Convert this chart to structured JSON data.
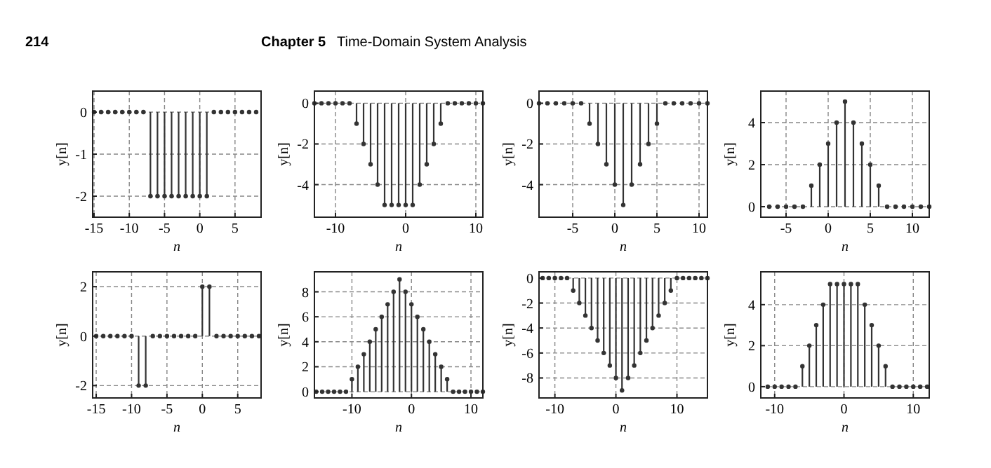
{
  "chart_data": [
    {
      "type": "lollipop",
      "annotations": [
        "214",
        "Chapter 5",
        "Time-Domain System Analysis"
      ],
      "xlabel": "n",
      "ylabel": "y[n]",
      "grid": true,
      "marker": "circle",
      "color": "#333333",
      "xlim": [
        -15.2,
        8.7
      ],
      "ylim": [
        -2.5,
        0.5
      ],
      "xticks": [
        -15,
        -10,
        -5,
        0,
        5
      ],
      "yticks": [
        0,
        -1,
        -2
      ],
      "x": [
        -15,
        -14,
        -13,
        -12,
        -11,
        -10,
        -9,
        -8,
        -7,
        -6,
        -5,
        -4,
        -3,
        -2,
        -1,
        0,
        1,
        2,
        3,
        4,
        5,
        6,
        7,
        8
      ],
      "values": [
        0,
        0,
        0,
        0,
        0,
        0,
        0,
        0,
        -2,
        -2,
        -2,
        -2,
        -2,
        -2,
        -2,
        -2,
        -2,
        0,
        0,
        0,
        0,
        0,
        0,
        0
      ]
    },
    {
      "type": "lollipop",
      "xlabel": "n",
      "ylabel": "y[n]",
      "grid": true,
      "marker": "circle",
      "color": "#333333",
      "xlim": [
        -13,
        11
      ],
      "ylim": [
        -5.6,
        0.6
      ],
      "xticks": [
        -10,
        0,
        10
      ],
      "yticks": [
        0,
        -2,
        -4
      ],
      "x": [
        -13,
        -12,
        -11,
        -10,
        -9,
        -8,
        -7,
        -6,
        -5,
        -4,
        -3,
        -2,
        -1,
        0,
        1,
        2,
        3,
        4,
        5,
        6,
        7,
        8,
        9,
        10,
        11
      ],
      "values": [
        0,
        0,
        0,
        0,
        0,
        0,
        -1,
        -2,
        -3,
        -4,
        -5,
        -5,
        -5,
        -5,
        -5,
        -4,
        -3,
        -2,
        -1,
        0,
        0,
        0,
        0,
        0,
        0
      ]
    },
    {
      "type": "lollipop",
      "xlabel": "n",
      "ylabel": "y[n]",
      "grid": true,
      "marker": "circle",
      "color": "#333333",
      "xlim": [
        -9,
        11
      ],
      "ylim": [
        -5.6,
        0.6
      ],
      "xticks": [
        -5,
        0,
        5,
        10
      ],
      "yticks": [
        0,
        -2,
        -4
      ],
      "x": [
        -9,
        -8,
        -7,
        -6,
        -5,
        -4,
        -3,
        -2,
        -1,
        0,
        1,
        2,
        3,
        4,
        5,
        6,
        7,
        8,
        9,
        10,
        11
      ],
      "values": [
        0,
        0,
        0,
        0,
        0,
        0,
        -1,
        -2,
        -3,
        -4,
        -5,
        -4,
        -3,
        -2,
        -1,
        0,
        0,
        0,
        0,
        0,
        0
      ]
    },
    {
      "type": "lollipop",
      "xlabel": "n",
      "ylabel": "y[n]",
      "grid": true,
      "marker": "circle",
      "color": "#333333",
      "xlim": [
        -8,
        12
      ],
      "ylim": [
        -0.5,
        5.5
      ],
      "xticks": [
        -5,
        0,
        5,
        10
      ],
      "yticks": [
        0,
        2,
        4
      ],
      "x": [
        -7,
        -6,
        -5,
        -4,
        -3,
        -2,
        -1,
        0,
        1,
        2,
        3,
        4,
        5,
        6,
        7,
        8,
        9,
        10,
        11,
        12
      ],
      "values": [
        0,
        0,
        0,
        0,
        0,
        1,
        2,
        3,
        4,
        5,
        4,
        3,
        2,
        1,
        0,
        0,
        0,
        0,
        0,
        0
      ]
    },
    {
      "type": "lollipop",
      "xlabel": "n",
      "ylabel": "y[n]",
      "grid": true,
      "marker": "circle",
      "color": "#333333",
      "xlim": [
        -15.5,
        8.3
      ],
      "ylim": [
        -2.5,
        2.6
      ],
      "xticks": [
        -15,
        -10,
        -5,
        0,
        5
      ],
      "yticks": [
        -2,
        0,
        2
      ],
      "x": [
        -15,
        -14,
        -13,
        -12,
        -11,
        -10,
        -9,
        -8,
        -7,
        -6,
        -5,
        -4,
        -3,
        -2,
        -1,
        0,
        1,
        2,
        3,
        4,
        5,
        6,
        7,
        8
      ],
      "values": [
        0,
        0,
        0,
        0,
        0,
        0,
        -2,
        -2,
        0,
        0,
        0,
        0,
        0,
        0,
        0,
        2,
        2,
        0,
        0,
        0,
        0,
        0,
        0,
        0
      ]
    },
    {
      "type": "lollipop",
      "xlabel": "n",
      "ylabel": "y[n]",
      "grid": true,
      "marker": "circle",
      "color": "#333333",
      "xlim": [
        -16.3,
        12
      ],
      "ylim": [
        -0.5,
        9.6
      ],
      "xticks": [
        -10,
        0,
        10
      ],
      "yticks": [
        0,
        2,
        4,
        6,
        8
      ],
      "x": [
        -16,
        -15,
        -14,
        -13,
        -12,
        -11,
        -10,
        -9,
        -8,
        -7,
        -6,
        -5,
        -4,
        -3,
        -2,
        -1,
        0,
        1,
        2,
        3,
        4,
        5,
        6,
        7,
        8,
        9,
        10,
        11,
        12
      ],
      "values": [
        0,
        0,
        0,
        0,
        0,
        0,
        1,
        2,
        3,
        4,
        5,
        6,
        7,
        8,
        9,
        8,
        7,
        6,
        5,
        4,
        3,
        2,
        1,
        0,
        0,
        0,
        0,
        0,
        0
      ]
    },
    {
      "type": "lollipop",
      "xlabel": "n",
      "ylabel": "y[n]",
      "grid": true,
      "marker": "circle",
      "color": "#333333",
      "xlim": [
        -12.6,
        15
      ],
      "ylim": [
        -9.6,
        0.5
      ],
      "xticks": [
        -10,
        0,
        10
      ],
      "yticks": [
        0,
        -2,
        -4,
        -6,
        -8
      ],
      "x": [
        -12,
        -11,
        -10,
        -9,
        -8,
        -7,
        -6,
        -5,
        -4,
        -3,
        -2,
        -1,
        0,
        1,
        2,
        3,
        4,
        5,
        6,
        7,
        8,
        9,
        10,
        11,
        12,
        13,
        14,
        15
      ],
      "values": [
        0,
        0,
        0,
        0,
        0,
        -1,
        -2,
        -3,
        -4,
        -5,
        -6,
        -7,
        -8,
        -9,
        -8,
        -7,
        -6,
        -5,
        -4,
        -3,
        -2,
        -1,
        0,
        0,
        0,
        0,
        0,
        0
      ]
    },
    {
      "type": "lollipop",
      "xlabel": "n",
      "ylabel": "y[n]",
      "grid": true,
      "marker": "circle",
      "color": "#333333",
      "xlim": [
        -12,
        12.3
      ],
      "ylim": [
        -0.55,
        5.6
      ],
      "xticks": [
        -10,
        0,
        10
      ],
      "yticks": [
        0,
        2,
        4
      ],
      "x": [
        -11,
        -10,
        -9,
        -8,
        -7,
        -6,
        -5,
        -4,
        -3,
        -2,
        -1,
        0,
        1,
        2,
        3,
        4,
        5,
        6,
        7,
        8,
        9,
        10,
        11,
        12
      ],
      "values": [
        0,
        0,
        0,
        0,
        0,
        1,
        2,
        3,
        4,
        5,
        5,
        5,
        5,
        5,
        4,
        3,
        2,
        1,
        0,
        0,
        0,
        0,
        0,
        0
      ]
    }
  ]
}
